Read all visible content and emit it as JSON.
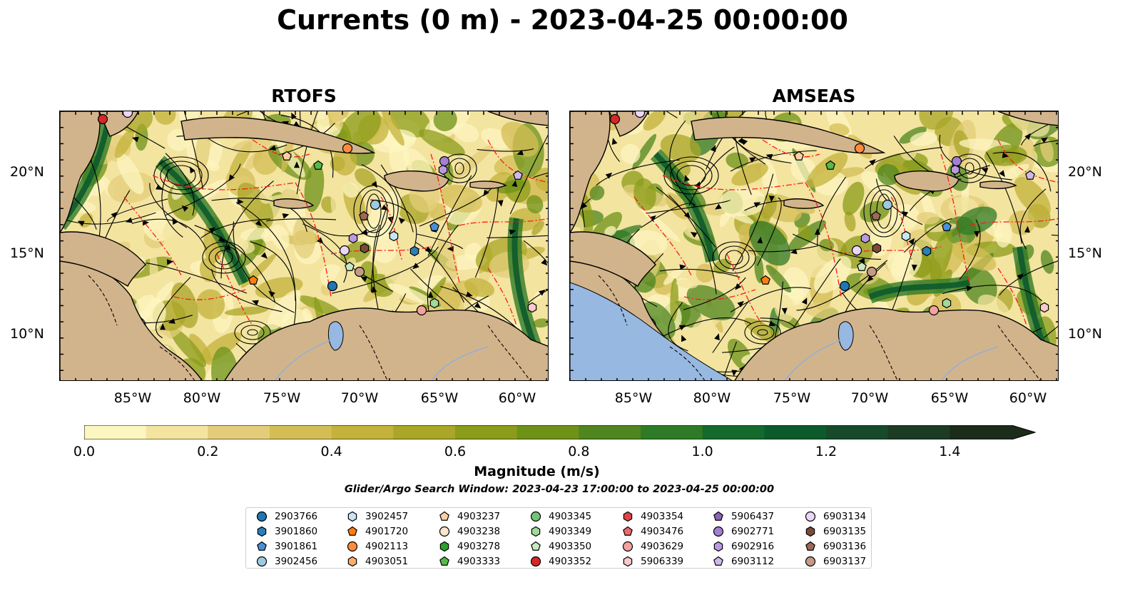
{
  "title": "Currents (0 m) - 2023-04-25 00:00:00",
  "panels": [
    {
      "title": "RTOFS"
    },
    {
      "title": "AMSEAS"
    }
  ],
  "axes": {
    "lat_labels": [
      "20°N",
      "15°N",
      "10°N"
    ],
    "lon_labels": [
      "85°W",
      "80°W",
      "75°W",
      "70°W",
      "65°W",
      "60°W"
    ]
  },
  "colorbar": {
    "label": "Magnitude (m/s)",
    "ticks": [
      "0.0",
      "0.2",
      "0.4",
      "0.6",
      "0.8",
      "1.0",
      "1.2",
      "1.4"
    ],
    "range": [
      0.0,
      1.5
    ],
    "extend": "max",
    "colors": [
      "#fdf6c0",
      "#f3e4a0",
      "#e3cd7a",
      "#d4bd55",
      "#c3b23b",
      "#a9a628",
      "#8b9c1a",
      "#6e9218",
      "#4f861f",
      "#2f7a26",
      "#14692c",
      "#0d5a2c",
      "#174a2a",
      "#1c3b24",
      "#1b2c1a"
    ]
  },
  "search_window": "Glider/Argo Search Window: 2023-04-23 17:00:00 to 2023-04-25 00:00:00",
  "legend": [
    {
      "id": "2903766",
      "marker": "circle",
      "color": "#1f77b4"
    },
    {
      "id": "3901860",
      "marker": "hexagon",
      "color": "#2c7fb8"
    },
    {
      "id": "3901861",
      "marker": "pentagon",
      "color": "#4a90d9"
    },
    {
      "id": "3902456",
      "marker": "circle",
      "color": "#9ecae1"
    },
    {
      "id": "3902457",
      "marker": "hexagon",
      "color": "#c6e6f5"
    },
    {
      "id": "4901720",
      "marker": "pentagon",
      "color": "#ff7f0e"
    },
    {
      "id": "4902113",
      "marker": "circle",
      "color": "#fd8d3c"
    },
    {
      "id": "4903051",
      "marker": "hexagon",
      "color": "#fdae6b"
    },
    {
      "id": "4903237",
      "marker": "pentagon",
      "color": "#fdd0a2"
    },
    {
      "id": "4903238",
      "marker": "circle",
      "color": "#fee6ce"
    },
    {
      "id": "4903278",
      "marker": "hexagon",
      "color": "#2ca02c"
    },
    {
      "id": "4903333",
      "marker": "pentagon",
      "color": "#56b948"
    },
    {
      "id": "4903345",
      "marker": "circle",
      "color": "#74c476"
    },
    {
      "id": "4903349",
      "marker": "hexagon",
      "color": "#a1d99b"
    },
    {
      "id": "4903350",
      "marker": "pentagon",
      "color": "#c7e9c0"
    },
    {
      "id": "4903352",
      "marker": "circle",
      "color": "#d62728"
    },
    {
      "id": "4903354",
      "marker": "hexagon",
      "color": "#e04545"
    },
    {
      "id": "4903476",
      "marker": "pentagon",
      "color": "#ef6a6a"
    },
    {
      "id": "4903629",
      "marker": "circle",
      "color": "#f4a1a1"
    },
    {
      "id": "5906339",
      "marker": "hexagon",
      "color": "#fbc9c9"
    },
    {
      "id": "5906437",
      "marker": "pentagon",
      "color": "#8c63b9"
    },
    {
      "id": "6902771",
      "marker": "circle",
      "color": "#a37fd0"
    },
    {
      "id": "6902916",
      "marker": "hexagon",
      "color": "#b99ae0"
    },
    {
      "id": "6903112",
      "marker": "pentagon",
      "color": "#d0b8ee"
    },
    {
      "id": "6903134",
      "marker": "circle",
      "color": "#ecd5f7"
    },
    {
      "id": "6903135",
      "marker": "hexagon",
      "color": "#7b4b3a"
    },
    {
      "id": "6903136",
      "marker": "pentagon",
      "color": "#9c6a55"
    },
    {
      "id": "6903137",
      "marker": "circle",
      "color": "#c49a88"
    }
  ]
}
